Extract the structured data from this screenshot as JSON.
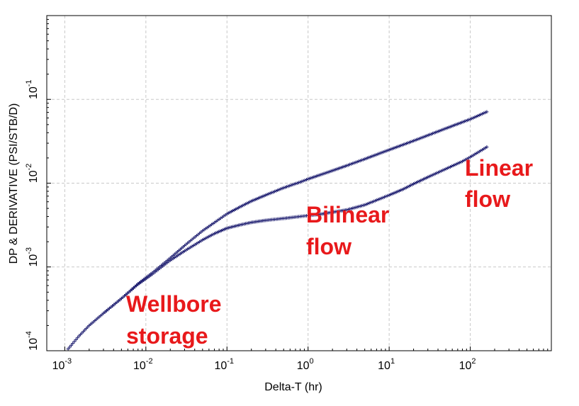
{
  "chart_data": {
    "type": "scatter",
    "title": "",
    "xlabel": "Delta-T (hr)",
    "ylabel": "DP & DERIVATIVE (PSI/STB/D)",
    "x_scale": "log",
    "y_scale": "log",
    "xlim": [
      0.0006,
      1000
    ],
    "ylim": [
      0.0001,
      1
    ],
    "grid": true,
    "legend": "none",
    "marker": "+",
    "marker_color": "#1a1a6e",
    "x_ticks": [
      {
        "base": "10",
        "exp": "-3",
        "value": 0.001
      },
      {
        "base": "10",
        "exp": "-2",
        "value": 0.01
      },
      {
        "base": "10",
        "exp": "-1",
        "value": 0.1
      },
      {
        "base": "10",
        "exp": "0",
        "value": 1
      },
      {
        "base": "10",
        "exp": "1",
        "value": 10
      },
      {
        "base": "10",
        "exp": "2",
        "value": 100
      }
    ],
    "y_ticks": [
      {
        "base": "10",
        "exp": "-4",
        "value": 0.0001
      },
      {
        "base": "10",
        "exp": "-3",
        "value": 0.001
      },
      {
        "base": "10",
        "exp": "-2",
        "value": 0.01
      },
      {
        "base": "10",
        "exp": "-1",
        "value": 0.1
      }
    ],
    "series": [
      {
        "x": [
          0.0011,
          0.0015,
          0.002,
          0.003,
          0.005,
          0.008,
          0.012,
          0.02,
          0.03,
          0.05,
          0.08,
          0.1,
          0.15,
          0.2,
          0.3,
          0.5,
          0.8,
          1,
          2,
          3,
          5,
          10,
          20,
          50,
          100,
          160
        ],
        "y": [
          0.000105,
          0.00015,
          0.0002,
          0.00028,
          0.00042,
          0.00063,
          0.00085,
          0.00128,
          0.0018,
          0.0027,
          0.0037,
          0.0043,
          0.0053,
          0.0061,
          0.0072,
          0.0088,
          0.0103,
          0.0112,
          0.0141,
          0.0162,
          0.0194,
          0.025,
          0.032,
          0.045,
          0.058,
          0.071
        ]
      },
      {
        "x": [
          0.003,
          0.005,
          0.008,
          0.012,
          0.02,
          0.03,
          0.05,
          0.07,
          0.1,
          0.15,
          0.2,
          0.3,
          0.5,
          0.8,
          1,
          1.5,
          2,
          3,
          5,
          8,
          10,
          15,
          20,
          30,
          50,
          80,
          100,
          160
        ],
        "y": [
          0.00028,
          0.00042,
          0.00062,
          0.00082,
          0.0012,
          0.00155,
          0.0021,
          0.0025,
          0.0029,
          0.0032,
          0.0034,
          0.0036,
          0.0038,
          0.004,
          0.0041,
          0.0043,
          0.0045,
          0.0048,
          0.0055,
          0.0066,
          0.0072,
          0.0085,
          0.0098,
          0.0118,
          0.0148,
          0.0182,
          0.0205,
          0.027
        ]
      }
    ],
    "annotations": [
      {
        "lines": [
          "Wellbore",
          "storage"
        ]
      },
      {
        "lines": [
          "Bilinear",
          "flow"
        ]
      },
      {
        "lines": [
          "Linear",
          "flow"
        ]
      }
    ]
  }
}
